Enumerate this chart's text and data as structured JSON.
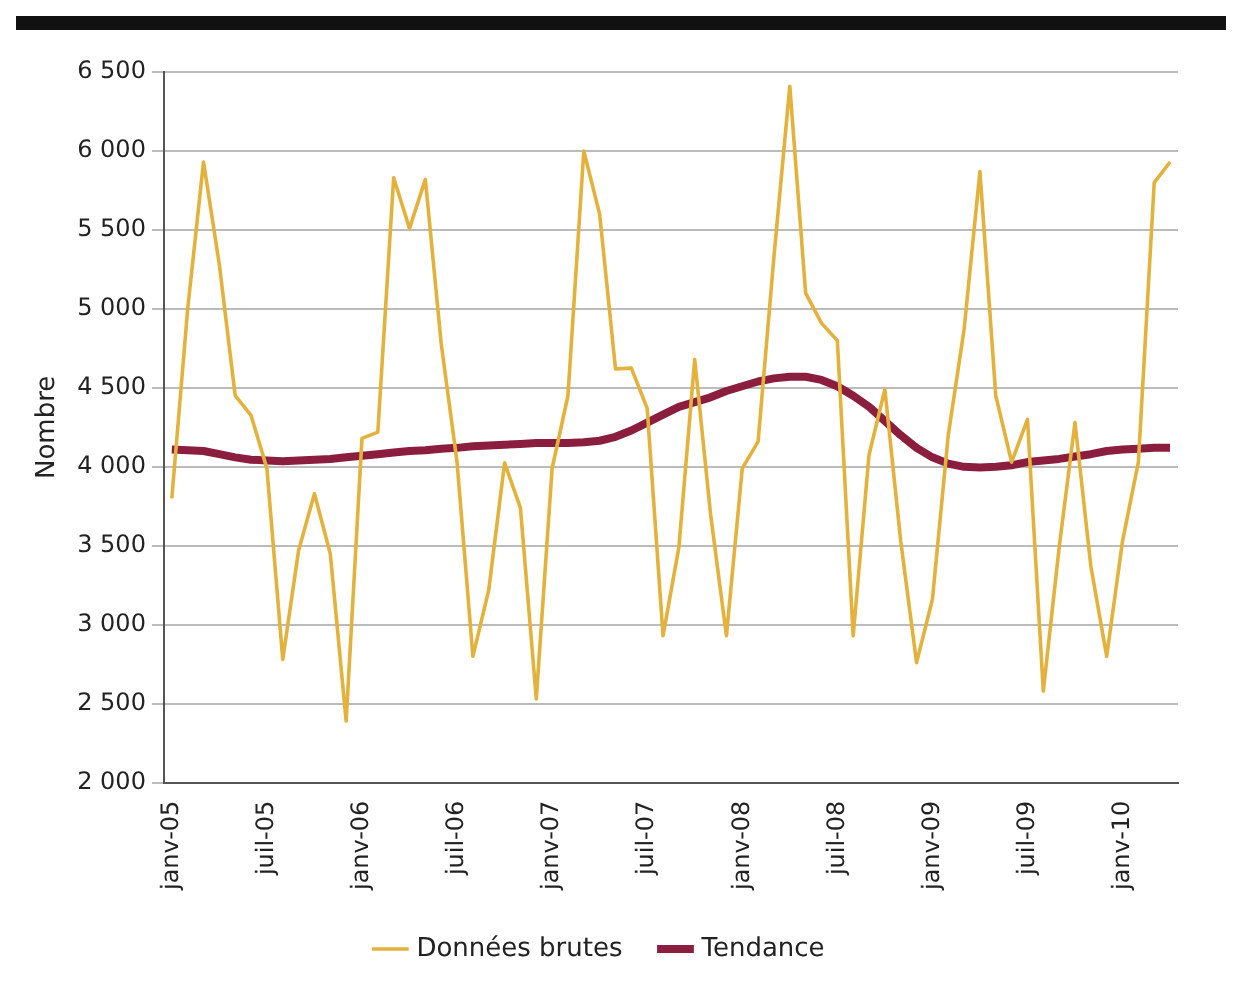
{
  "chart_data": {
    "type": "line",
    "ylabel": "Nombre",
    "categories": [
      "janv-05",
      null,
      null,
      null,
      null,
      null,
      "juil-05",
      null,
      null,
      null,
      null,
      null,
      "janv-06",
      null,
      null,
      null,
      null,
      null,
      "juil-06",
      null,
      null,
      null,
      null,
      null,
      "janv-07",
      null,
      null,
      null,
      null,
      null,
      "juil-07",
      null,
      null,
      null,
      null,
      null,
      "janv-08",
      null,
      null,
      null,
      null,
      null,
      "juil-08",
      null,
      null,
      null,
      null,
      null,
      "janv-09",
      null,
      null,
      null,
      null,
      null,
      "juil-09",
      null,
      null,
      null,
      null,
      null,
      "janv-10",
      null,
      null,
      null
    ],
    "series": [
      {
        "name": "Données brutes",
        "color": "#e3b23c",
        "values": [
          3800,
          5000,
          5930,
          5280,
          4450,
          4325,
          3990,
          2780,
          3470,
          3830,
          3450,
          2390,
          4180,
          4220,
          5830,
          5510,
          5820,
          4780,
          4030,
          2800,
          3220,
          4025,
          3740,
          2530,
          3990,
          4450,
          6000,
          5600,
          4620,
          4625,
          4370,
          2930,
          3490,
          4680,
          3700,
          2930,
          3990,
          4160,
          5330,
          6410,
          5100,
          4910,
          4800,
          2930,
          4075,
          4490,
          3530,
          2760,
          3160,
          4200,
          4870,
          5870,
          4450,
          4030,
          4300,
          2580,
          3490,
          4280,
          3370,
          2800,
          3530,
          4030,
          5800,
          5930
        ]
      },
      {
        "name": "Tendance",
        "color": "#8b1e3f",
        "values": [
          4110,
          4105,
          4100,
          4080,
          4060,
          4045,
          4040,
          4035,
          4040,
          4045,
          4050,
          4060,
          4070,
          4080,
          4090,
          4100,
          4105,
          4115,
          4120,
          4130,
          4135,
          4140,
          4145,
          4150,
          4150,
          4150,
          4155,
          4165,
          4190,
          4230,
          4280,
          4330,
          4380,
          4410,
          4440,
          4480,
          4510,
          4540,
          4560,
          4570,
          4570,
          4550,
          4510,
          4450,
          4380,
          4290,
          4200,
          4120,
          4060,
          4020,
          4000,
          3995,
          4000,
          4010,
          4030,
          4040,
          4050,
          4065,
          4080,
          4100,
          4110,
          4115,
          4120,
          4120
        ]
      }
    ],
    "ylim": [
      2000,
      6500
    ],
    "yticks": [
      {
        "value": 2000,
        "label": "2 000"
      },
      {
        "value": 2500,
        "label": "2 500"
      },
      {
        "value": 3000,
        "label": "3 000"
      },
      {
        "value": 3500,
        "label": "3 500"
      },
      {
        "value": 4000,
        "label": "4 000"
      },
      {
        "value": 4500,
        "label": "4 500"
      },
      {
        "value": 5000,
        "label": "5 000"
      },
      {
        "value": 5500,
        "label": "5 500"
      },
      {
        "value": 6000,
        "label": "6 000"
      },
      {
        "value": 6500,
        "label": "6 500"
      }
    ],
    "grid": "y",
    "legend": "bottom",
    "marker": "none",
    "line_style": "solid"
  }
}
